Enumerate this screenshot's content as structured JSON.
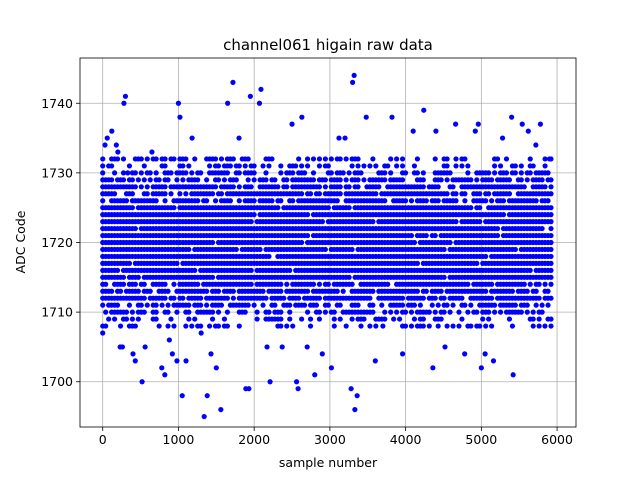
{
  "chart_data": {
    "type": "scatter",
    "title": "channel061 higain raw data",
    "xlabel": "sample number",
    "ylabel": "ADC Code",
    "xlim": [
      -300,
      6250
    ],
    "ylim": [
      1693.5,
      1746.5
    ],
    "xticks": [
      0,
      1000,
      2000,
      3000,
      4000,
      5000,
      6000
    ],
    "yticks": [
      1700,
      1710,
      1720,
      1730,
      1740
    ],
    "grid": true,
    "marker_color": "#0000ff",
    "series": [
      {
        "name": "",
        "points": [
          [
            0,
            1707
          ],
          [
            30,
            1734
          ],
          [
            60,
            1735
          ],
          [
            120,
            1736
          ],
          [
            180,
            1734
          ],
          [
            200,
            1733
          ],
          [
            230,
            1705
          ],
          [
            260,
            1705
          ],
          [
            280,
            1740
          ],
          [
            300,
            1741
          ],
          [
            330,
            1730
          ],
          [
            400,
            1704
          ],
          [
            430,
            1703
          ],
          [
            520,
            1700
          ],
          [
            560,
            1705
          ],
          [
            650,
            1733
          ],
          [
            780,
            1702
          ],
          [
            820,
            1701
          ],
          [
            880,
            1706
          ],
          [
            920,
            1704
          ],
          [
            980,
            1703
          ],
          [
            1000,
            1740
          ],
          [
            1020,
            1738
          ],
          [
            1050,
            1698
          ],
          [
            1100,
            1703
          ],
          [
            1180,
            1735
          ],
          [
            1300,
            1707
          ],
          [
            1340,
            1695
          ],
          [
            1380,
            1698
          ],
          [
            1430,
            1704
          ],
          [
            1500,
            1702
          ],
          [
            1560,
            1696
          ],
          [
            1650,
            1740
          ],
          [
            1720,
            1743
          ],
          [
            1800,
            1735
          ],
          [
            1890,
            1699
          ],
          [
            1930,
            1699
          ],
          [
            1950,
            1741
          ],
          [
            2070,
            1740
          ],
          [
            2090,
            1742
          ],
          [
            2170,
            1705
          ],
          [
            2210,
            1700
          ],
          [
            2370,
            1705
          ],
          [
            2500,
            1737
          ],
          [
            2560,
            1700
          ],
          [
            2580,
            1699
          ],
          [
            2630,
            1738
          ],
          [
            2700,
            1705
          ],
          [
            2800,
            1701
          ],
          [
            2900,
            1704
          ],
          [
            3020,
            1702
          ],
          [
            3120,
            1735
          ],
          [
            3200,
            1735
          ],
          [
            3280,
            1699
          ],
          [
            3300,
            1743
          ],
          [
            3320,
            1744
          ],
          [
            3330,
            1696
          ],
          [
            3360,
            1698
          ],
          [
            3480,
            1738
          ],
          [
            3600,
            1703
          ],
          [
            3700,
            1708
          ],
          [
            3820,
            1738
          ],
          [
            3960,
            1704
          ],
          [
            4100,
            1736
          ],
          [
            4240,
            1739
          ],
          [
            4360,
            1702
          ],
          [
            4400,
            1736
          ],
          [
            4520,
            1705
          ],
          [
            4660,
            1737
          ],
          [
            4780,
            1704
          ],
          [
            4920,
            1736
          ],
          [
            4960,
            1737
          ],
          [
            5000,
            1702
          ],
          [
            5050,
            1704
          ],
          [
            5160,
            1703
          ],
          [
            5280,
            1735
          ],
          [
            5400,
            1738
          ],
          [
            5420,
            1701
          ],
          [
            5540,
            1737
          ],
          [
            5620,
            1736
          ],
          [
            5720,
            1734
          ],
          [
            5780,
            1737
          ],
          [
            5840,
            1708
          ],
          [
            5900,
            1732
          ],
          [
            5920,
            1708
          ]
        ]
      }
    ],
    "dense_band": {
      "y_values": [
        1708,
        1709,
        1710,
        1711,
        1712,
        1713,
        1714,
        1715,
        1716,
        1717,
        1718,
        1719,
        1720,
        1721,
        1722,
        1723,
        1724,
        1725,
        1726,
        1727,
        1728,
        1729,
        1730,
        1731,
        1732
      ],
      "x_range": [
        0,
        5920
      ],
      "columns": 152
    }
  }
}
